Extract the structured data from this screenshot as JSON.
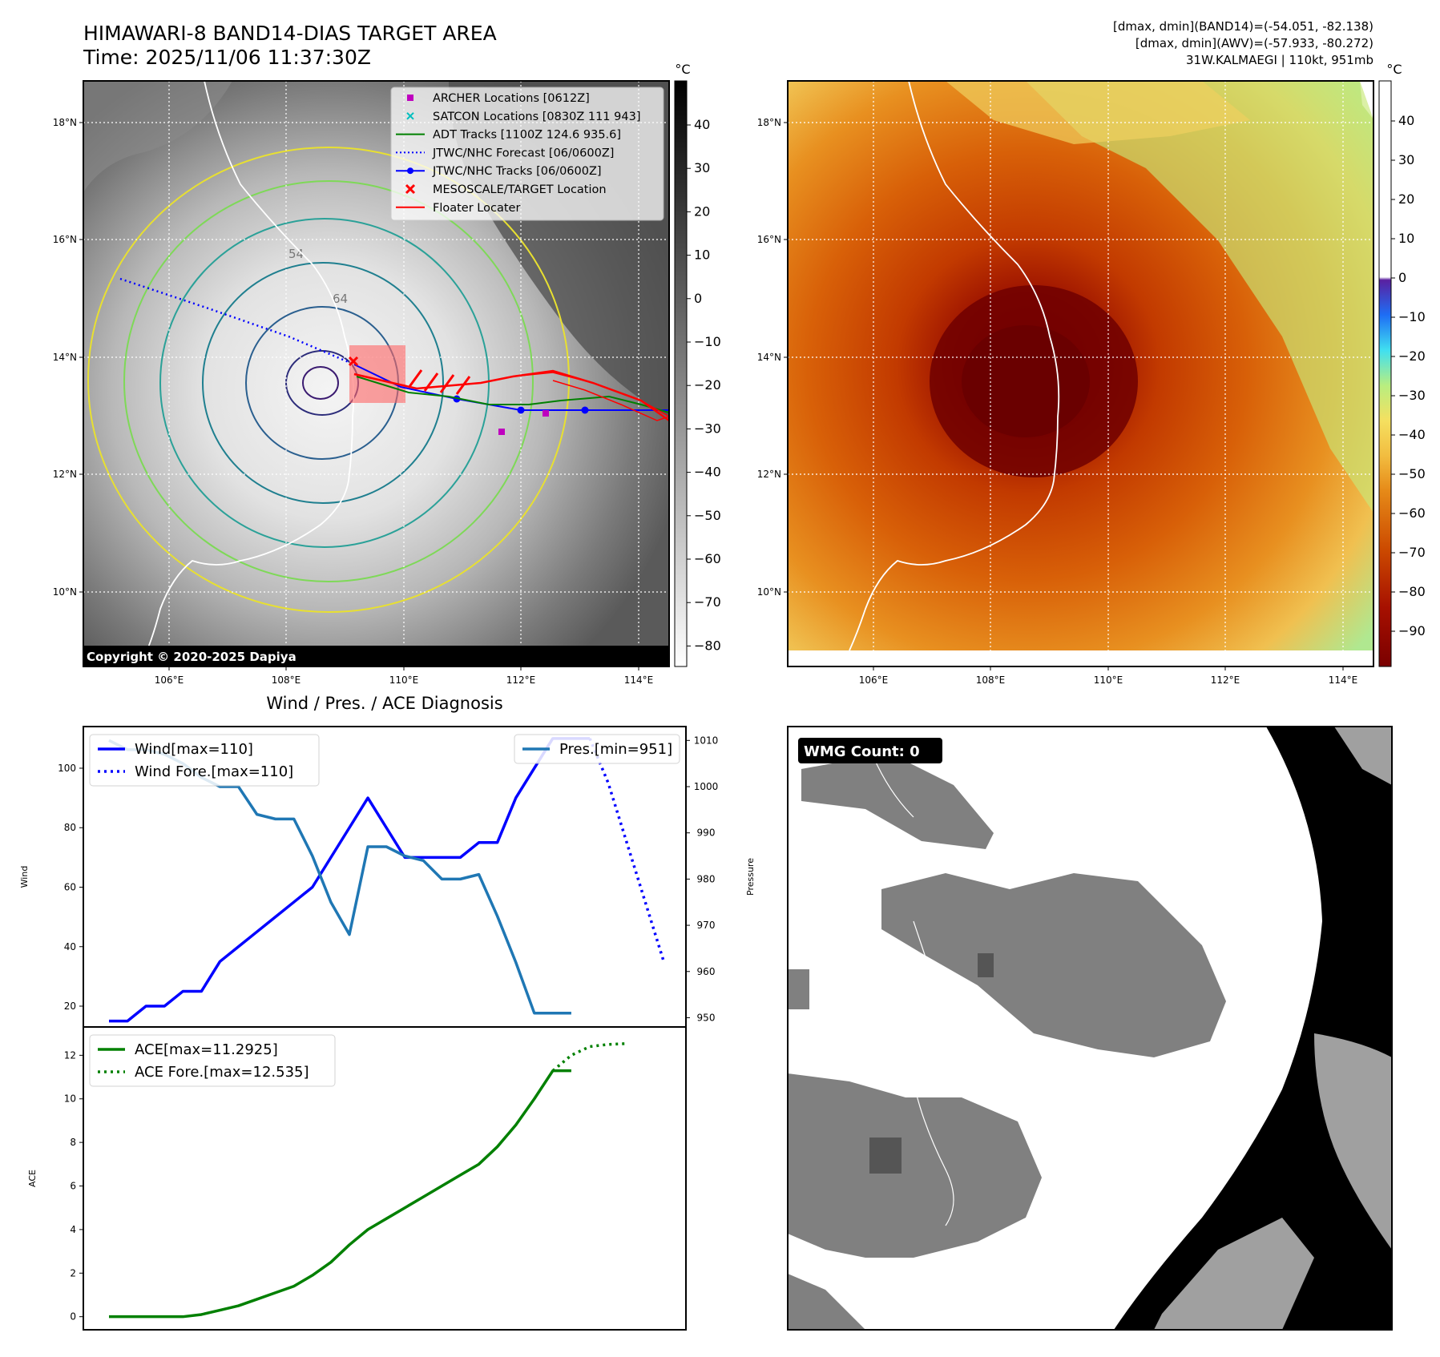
{
  "header": {
    "title_line1": "HIMAWARI-8 BAND14-DIAS TARGET AREA",
    "title_line2": "Time: 2025/11/06 11:37:30Z",
    "info_line1": "[dmax, dmin](BAND14)=(-54.051, -82.138)",
    "info_line2": "[dmax, dmin](AWV)=(-57.933, -80.272)",
    "info_line3": "31W.KALMAEGI | 110kt, 951mb"
  },
  "maps": {
    "lat_ticks": [
      "18°N",
      "16°N",
      "14°N",
      "12°N",
      "10°N"
    ],
    "lon_ticks": [
      "106°E",
      "108°E",
      "110°E",
      "112°E",
      "114°E"
    ],
    "colorbar_unit": "°C",
    "contour_label": "54",
    "contour_label_2": "64",
    "copyright": "Copyright © 2020-2025 Dapiya",
    "left_colorbar_ticks": [
      "40",
      "30",
      "20",
      "10",
      "0",
      "−10",
      "−20",
      "−30",
      "−40",
      "−50",
      "−60",
      "−70",
      "−80"
    ],
    "right_colorbar_ticks": [
      "40",
      "30",
      "20",
      "10",
      "0",
      "−10",
      "−20",
      "−30",
      "−40",
      "−50",
      "−60",
      "−70",
      "−80",
      "−90"
    ],
    "legend": [
      {
        "label": "ARCHER Locations [0612Z]",
        "color": "#bf00bf",
        "style": "square"
      },
      {
        "label": "SATCON Locations [0830Z 111 943]",
        "color": "#00bfbf",
        "style": "x"
      },
      {
        "label": "ADT Tracks [1100Z 124.6 935.6]",
        "color": "#008000",
        "style": "line"
      },
      {
        "label": "JTWC/NHC Forecast [06/0600Z]",
        "color": "#0000ff",
        "style": "dotted"
      },
      {
        "label": "JTWC/NHC Tracks [06/0600Z]",
        "color": "#0000ff",
        "style": "line-dot"
      },
      {
        "label": "MESOSCALE/TARGET Location",
        "color": "#ff0000",
        "style": "bigx"
      },
      {
        "label": "Floater Locater",
        "color": "#ff0000",
        "style": "line"
      }
    ]
  },
  "wmg": {
    "label": "WMG Count: 0"
  },
  "chart_data": [
    {
      "type": "line",
      "title": "Wind / Pres. / ACE Diagnosis",
      "ylabel": "Wind",
      "ylabel_right": "Pressure",
      "ylim": [
        13,
        114
      ],
      "ylim_right": [
        948,
        1013
      ],
      "yticks": [
        20,
        40,
        60,
        80,
        100
      ],
      "yticks_right": [
        950,
        960,
        970,
        980,
        990,
        1000,
        1010
      ],
      "x": [
        0,
        1,
        2,
        3,
        4,
        5,
        6,
        7,
        8,
        9,
        10,
        11,
        12,
        13,
        14,
        15,
        16,
        17,
        18,
        19,
        20,
        21,
        22,
        23,
        24,
        25,
        26
      ],
      "series": [
        {
          "name": "Wind[max=110]",
          "color": "#0000ff",
          "axis": "left",
          "x": [
            0,
            1,
            2,
            3,
            4,
            5,
            6,
            7,
            8,
            9,
            10,
            11,
            12,
            13,
            14,
            15,
            16,
            17,
            18,
            19,
            20,
            21,
            22,
            23,
            24,
            25,
            26
          ],
          "values": [
            15,
            15,
            20,
            20,
            25,
            25,
            35,
            40,
            45,
            50,
            55,
            60,
            70,
            80,
            90,
            80,
            70,
            70,
            70,
            70,
            75,
            75,
            90,
            100,
            110,
            110,
            110
          ]
        },
        {
          "name": "Wind Fore.[max=110]",
          "color": "#0000ff",
          "axis": "left",
          "dotted": true,
          "x": [
            26,
            27,
            28,
            29,
            30
          ],
          "values": [
            110,
            95,
            75,
            55,
            35
          ]
        },
        {
          "name": "Pres.[min=951]",
          "color": "#1f77b4",
          "axis": "right",
          "x": [
            0,
            1,
            2,
            3,
            4,
            5,
            6,
            7,
            8,
            9,
            10,
            11,
            12,
            13,
            14,
            15,
            16,
            17,
            18,
            19,
            20,
            21,
            22,
            23,
            24,
            25
          ],
          "values": [
            1010,
            1008,
            1008,
            1007,
            1005,
            1002,
            1000,
            1000,
            994,
            993,
            993,
            985,
            975,
            968,
            987,
            987,
            985,
            984,
            980,
            980,
            981,
            972,
            962,
            951,
            951,
            951
          ]
        }
      ]
    },
    {
      "type": "line",
      "ylabel": "ACE",
      "ylim": [
        -0.6,
        13.3
      ],
      "yticks": [
        0,
        2,
        4,
        6,
        8,
        10,
        12
      ],
      "series": [
        {
          "name": "ACE[max=11.2925]",
          "color": "#008000",
          "x": [
            0,
            1,
            2,
            3,
            4,
            5,
            6,
            7,
            8,
            9,
            10,
            11,
            12,
            13,
            14,
            15,
            16,
            17,
            18,
            19,
            20,
            21,
            22,
            23,
            24,
            25
          ],
          "values": [
            0,
            0,
            0,
            0,
            0,
            0.1,
            0.3,
            0.5,
            0.8,
            1.1,
            1.4,
            1.9,
            2.5,
            3.3,
            4.0,
            4.5,
            5.0,
            5.5,
            6.0,
            6.5,
            7.0,
            7.8,
            8.8,
            10.0,
            11.29,
            11.29
          ]
        },
        {
          "name": "ACE Fore.[max=12.535]",
          "color": "#008000",
          "dotted": true,
          "x": [
            24,
            25,
            26,
            27,
            28
          ],
          "values": [
            11.29,
            12.0,
            12.4,
            12.5,
            12.535
          ]
        }
      ]
    }
  ]
}
